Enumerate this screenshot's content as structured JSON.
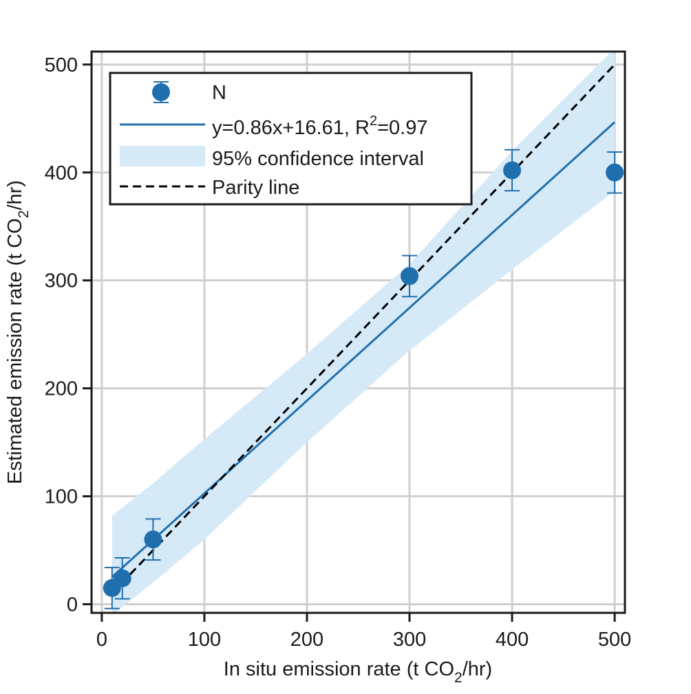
{
  "chart_data": {
    "type": "scatter",
    "title": "",
    "xlabel": {
      "prefix": "In situ emission rate (t CO",
      "sub": "2",
      "suffix": "/hr)"
    },
    "ylabel": {
      "prefix": "Estimated emission rate (t CO",
      "sub": "2",
      "suffix": "/hr)"
    },
    "xlim": [
      -10,
      510
    ],
    "ylim": [
      -8,
      512
    ],
    "x_ticks": [
      0,
      100,
      200,
      300,
      400,
      500
    ],
    "y_ticks": [
      0,
      100,
      200,
      300,
      400,
      500
    ],
    "grid": true,
    "legend_position": "top-left",
    "series": [
      {
        "name": "N",
        "kind": "scatter-errorbar",
        "color": "#1f6fad",
        "x": [
          10,
          20,
          50,
          300,
          400,
          500
        ],
        "y": [
          15,
          24,
          60,
          304,
          402,
          400
        ],
        "yerr": [
          19,
          19,
          19,
          19,
          19,
          19
        ]
      },
      {
        "name": "y=0.86x+16.61, R=0.97",
        "legend_label": {
          "prefix": "y=0.86x+16.61, R",
          "sup": "2",
          "suffix": "=0.97"
        },
        "kind": "fit-line",
        "color": "#1f6fad",
        "slope": 0.86,
        "intercept": 16.61,
        "x_range": [
          10,
          500
        ]
      },
      {
        "name": "95% confidence interval",
        "kind": "band",
        "color": "#d6e9f7",
        "x": [
          10,
          50,
          100,
          200,
          300,
          400,
          500
        ],
        "lower": [
          -10,
          20,
          60,
          150,
          235,
          310,
          383
        ],
        "upper": [
          82,
          112,
          153,
          232,
          315,
          420,
          515
        ]
      },
      {
        "name": "Parity line",
        "kind": "parity",
        "color": "#000000",
        "x_range": [
          10,
          500
        ]
      }
    ]
  }
}
